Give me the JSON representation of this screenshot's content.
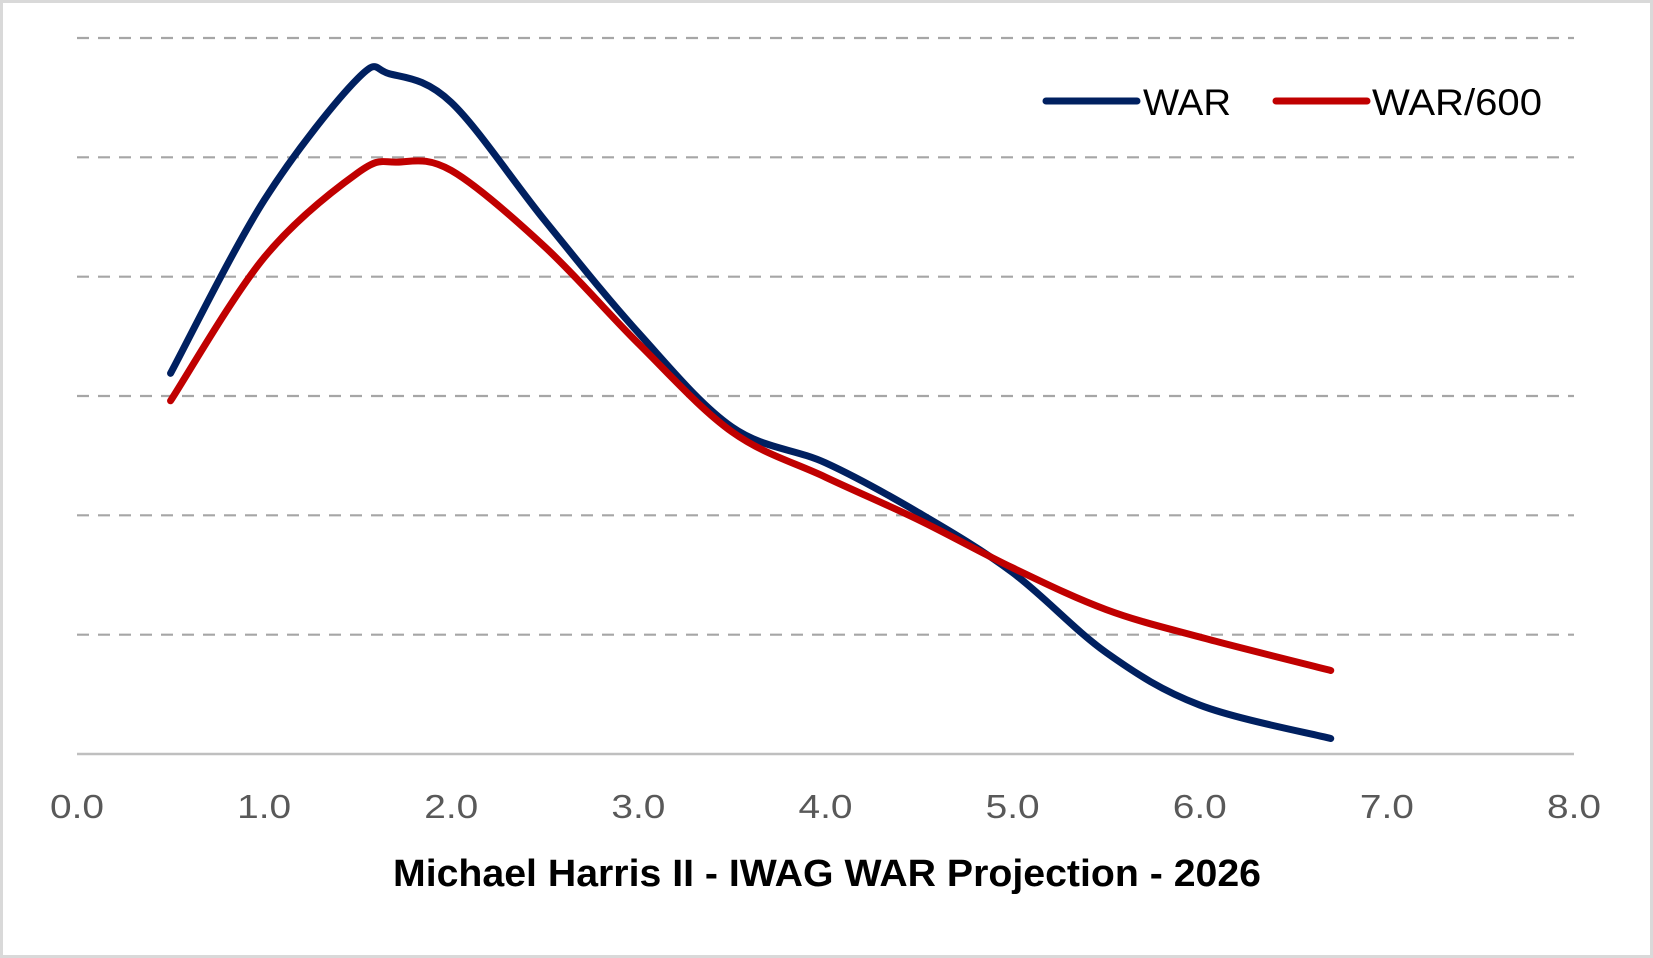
{
  "chart_data": {
    "type": "line",
    "title": "Michael Harris II - IWAG WAR Projection - 2026",
    "xlabel": "Michael Harris II - IWAG WAR Projection - 2026",
    "ylabel": "",
    "xlim": [
      0,
      8
    ],
    "ylim": [
      0,
      6
    ],
    "x_ticks": [
      "0.0",
      "1.0",
      "2.0",
      "3.0",
      "4.0",
      "5.0",
      "6.0",
      "7.0",
      "8.0"
    ],
    "x_tick_values": [
      0,
      1,
      2,
      3,
      4,
      5,
      6,
      7,
      8
    ],
    "y_gridlines": [
      1,
      2,
      3,
      4,
      5,
      6
    ],
    "y_tick_labels_shown": false,
    "grid": "horizontal-dashed",
    "legend_position": "top-right",
    "smooth": true,
    "series": [
      {
        "name": "WAR",
        "color": "#002060",
        "x": [
          0.5,
          1.0,
          1.5,
          1.67,
          2.0,
          2.5,
          3.0,
          3.5,
          4.0,
          4.5,
          5.0,
          5.5,
          6.0,
          6.7
        ],
        "values": [
          3.19,
          4.64,
          5.66,
          5.7,
          5.46,
          4.47,
          3.53,
          2.74,
          2.44,
          2.02,
          1.52,
          0.85,
          0.41,
          0.13
        ]
      },
      {
        "name": "WAR/600",
        "color": "#c00000",
        "x": [
          0.5,
          1.0,
          1.5,
          1.71,
          2.0,
          2.5,
          3.0,
          3.5,
          4.0,
          4.5,
          5.0,
          5.5,
          6.0,
          6.7
        ],
        "values": [
          2.96,
          4.16,
          4.87,
          4.96,
          4.89,
          4.25,
          3.44,
          2.7,
          2.32,
          1.96,
          1.56,
          1.21,
          0.98,
          0.7
        ]
      }
    ]
  },
  "colors": {
    "gridline": "#a6a6a6",
    "axis": "#bfbfbf",
    "border": "#d9d9d9",
    "tick_text": "#595959"
  }
}
